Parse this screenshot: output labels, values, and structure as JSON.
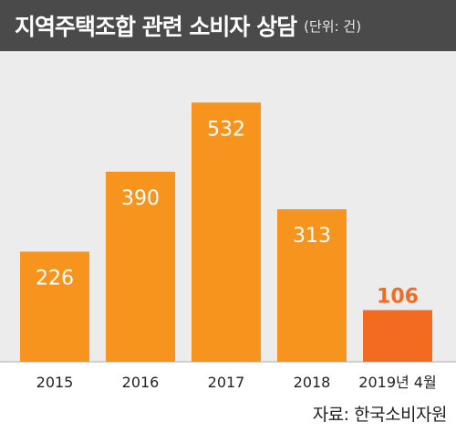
{
  "header": {
    "title": "지역주택조합 관련 소비자 상담",
    "unit": "(단위: 건)"
  },
  "source": "자료: 한국소비자원",
  "colors": {
    "bar": "#f7941d",
    "bar_highlight": "#f26b21",
    "label_on_bar": "#ffffff",
    "label_highlight": "#f26b21",
    "header_bg": "#4a4a4a",
    "plot_bg": "#ececec"
  },
  "chart_data": {
    "type": "bar",
    "title": "지역주택조합 관련 소비자 상담",
    "unit": "(단위: 건)",
    "categories": [
      "2015",
      "2016",
      "2017",
      "2018",
      "2019년 4월"
    ],
    "values": [
      226,
      390,
      532,
      313,
      106
    ],
    "highlight_index": 4,
    "ylim": [
      0,
      600
    ],
    "grid": false,
    "legend": "none"
  }
}
